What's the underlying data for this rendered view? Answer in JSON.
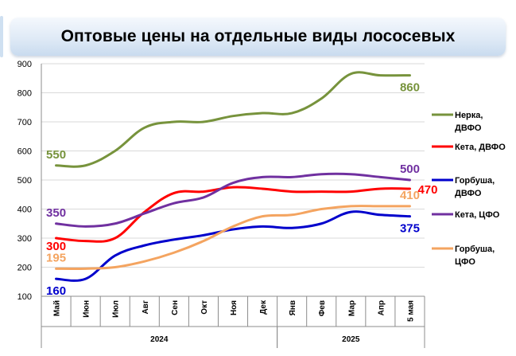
{
  "title": "Оптовые цены на отдельные виды лососевых",
  "chart_data": {
    "type": "line",
    "title": "Оптовые цены на отдельные виды лососевых",
    "categories": [
      "Май",
      "Июн",
      "Июл",
      "Авг",
      "Сен",
      "Окт",
      "Ноя",
      "Дек",
      "Янв",
      "Фев",
      "Мар",
      "Апр",
      "5 мая"
    ],
    "years": [
      {
        "label": "2024",
        "from": 0,
        "to": 7
      },
      {
        "label": "2025",
        "from": 8,
        "to": 12
      }
    ],
    "ylim": [
      100,
      900
    ],
    "yticks": [
      100,
      200,
      300,
      400,
      500,
      600,
      700,
      800,
      900
    ],
    "grid": "horizontal",
    "legend": "right",
    "series": [
      {
        "name": "Нерка, ДВФО",
        "color": "#77933c",
        "values": [
          550,
          550,
          600,
          680,
          700,
          700,
          720,
          730,
          730,
          780,
          865,
          860,
          860
        ],
        "labels": [
          {
            "index": 0,
            "text": "550",
            "pos": "above"
          },
          {
            "index": 12,
            "text": "860",
            "pos": "below"
          }
        ]
      },
      {
        "name": "Кета, ДВФО",
        "color": "#ff0000",
        "values": [
          300,
          290,
          300,
          390,
          455,
          460,
          475,
          470,
          460,
          460,
          460,
          470,
          470
        ],
        "labels": [
          {
            "index": 0,
            "text": "300",
            "pos": "left-below"
          },
          {
            "index": 12,
            "text": "470",
            "pos": "right"
          }
        ]
      },
      {
        "name": "Горбуша, ДВФО",
        "color": "#0000cc",
        "values": [
          160,
          160,
          240,
          275,
          295,
          310,
          330,
          340,
          335,
          350,
          390,
          380,
          375
        ],
        "labels": [
          {
            "index": 0,
            "text": "160",
            "pos": "below"
          },
          {
            "index": 12,
            "text": "375",
            "pos": "below"
          }
        ]
      },
      {
        "name": "Кета, ЦФО",
        "color": "#7030a0",
        "values": [
          350,
          340,
          350,
          385,
          420,
          440,
          490,
          510,
          510,
          520,
          520,
          510,
          500
        ],
        "labels": [
          {
            "index": 0,
            "text": "350",
            "pos": "above"
          },
          {
            "index": 12,
            "text": "500",
            "pos": "above"
          }
        ]
      },
      {
        "name": "Горбуша, ЦФО",
        "color": "#f4a460",
        "values": [
          195,
          195,
          200,
          220,
          250,
          290,
          340,
          375,
          380,
          400,
          410,
          410,
          410
        ],
        "labels": [
          {
            "index": 0,
            "text": "195",
            "pos": "above"
          },
          {
            "index": 12,
            "text": "410",
            "pos": "above"
          }
        ]
      }
    ]
  }
}
